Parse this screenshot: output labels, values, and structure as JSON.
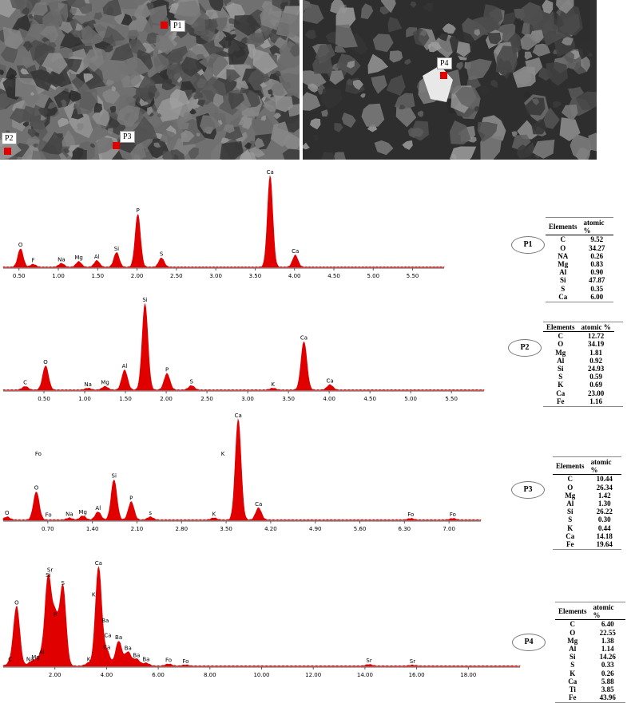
{
  "sem": {
    "left_points": [
      {
        "label": "P1"
      },
      {
        "label": "P2"
      },
      {
        "label": "P3"
      }
    ],
    "right_points": [
      {
        "label": "P4"
      }
    ]
  },
  "table_headers": {
    "element": "Elements",
    "value": "atomic %"
  },
  "chart_data": [
    {
      "type": "line",
      "point": "P1",
      "xticks": [
        "0.50",
        "1.00",
        "1.50",
        "2.00",
        "2.50",
        "3.00",
        "3.50",
        "4.00",
        "4.50",
        "5.00",
        "5.50"
      ],
      "xlim": [
        0.3,
        5.9
      ],
      "peaks": [
        {
          "label": "O",
          "x": 0.52,
          "h": 0.2
        },
        {
          "label": "F",
          "x": 0.68,
          "h": 0.03
        },
        {
          "label": "Na",
          "x": 1.04,
          "h": 0.04
        },
        {
          "label": "Mg",
          "x": 1.26,
          "h": 0.06
        },
        {
          "label": "Al",
          "x": 1.49,
          "h": 0.07
        },
        {
          "label": "Si",
          "x": 1.74,
          "h": 0.16
        },
        {
          "label": "P",
          "x": 2.01,
          "h": 0.58
        },
        {
          "label": "S",
          "x": 2.31,
          "h": 0.1
        },
        {
          "label": "Ca",
          "x": 3.69,
          "h": 1.0
        },
        {
          "label": "Ca",
          "x": 4.01,
          "h": 0.13
        }
      ],
      "table": [
        {
          "el": "C",
          "v": "9.52"
        },
        {
          "el": "O",
          "v": "34.27"
        },
        {
          "el": "NA",
          "v": "0.26"
        },
        {
          "el": "Mg",
          "v": "0.83"
        },
        {
          "el": "Al",
          "v": "0.90"
        },
        {
          "el": "Si",
          "v": "47.87"
        },
        {
          "el": "S",
          "v": "0.35"
        },
        {
          "el": "Ca",
          "v": "6.00"
        }
      ]
    },
    {
      "type": "line",
      "point": "P2",
      "xticks": [
        "0.50",
        "1.00",
        "1.50",
        "2.00",
        "2.50",
        "3.00",
        "3.50",
        "4.00",
        "4.50",
        "5.00",
        "5.50"
      ],
      "xlim": [
        0.0,
        5.9
      ],
      "peaks": [
        {
          "label": "C",
          "x": 0.27,
          "h": 0.04
        },
        {
          "label": "O",
          "x": 0.52,
          "h": 0.28
        },
        {
          "label": "Na",
          "x": 1.04,
          "h": 0.02
        },
        {
          "label": "Mg",
          "x": 1.25,
          "h": 0.04
        },
        {
          "label": "Al",
          "x": 1.49,
          "h": 0.23
        },
        {
          "label": "Si",
          "x": 1.74,
          "h": 1.0
        },
        {
          "label": "P",
          "x": 2.01,
          "h": 0.19
        },
        {
          "label": "S",
          "x": 2.31,
          "h": 0.05
        },
        {
          "label": "K",
          "x": 3.31,
          "h": 0.02
        },
        {
          "label": "Ca",
          "x": 3.69,
          "h": 0.56
        },
        {
          "label": "Ca",
          "x": 4.01,
          "h": 0.06
        }
      ],
      "table": [
        {
          "el": "C",
          "v": "12.72"
        },
        {
          "el": "O",
          "v": "34.19"
        },
        {
          "el": "Mg",
          "v": "1.81"
        },
        {
          "el": "Al",
          "v": "0.92"
        },
        {
          "el": "Si",
          "v": "24.93"
        },
        {
          "el": "S",
          "v": "0.59"
        },
        {
          "el": "K",
          "v": "0.69"
        },
        {
          "el": "Ca",
          "v": "23.00"
        },
        {
          "el": "Fe",
          "v": "1.16"
        }
      ]
    },
    {
      "type": "line",
      "point": "P3",
      "xticks": [
        "0.70",
        "1.40",
        "2.10",
        "2.80",
        "3.50",
        "4.20",
        "4.90",
        "5.60",
        "6.30",
        "7.00"
      ],
      "xlim": [
        0.0,
        7.5
      ],
      "peaks": [
        {
          "label": "O",
          "x": 0.06,
          "h": 0.03
        },
        {
          "label": "O",
          "x": 0.52,
          "h": 0.28
        },
        {
          "label": "Na",
          "x": 1.04,
          "h": 0.02
        },
        {
          "label": "Mg",
          "x": 1.25,
          "h": 0.04
        },
        {
          "label": "Al",
          "x": 1.49,
          "h": 0.08
        },
        {
          "label": "Si",
          "x": 1.74,
          "h": 0.4
        },
        {
          "label": "P",
          "x": 2.01,
          "h": 0.18
        },
        {
          "label": "s",
          "x": 2.31,
          "h": 0.03
        },
        {
          "label": "K",
          "x": 3.31,
          "h": 0.02
        },
        {
          "label": "Ca",
          "x": 3.69,
          "h": 1.0
        },
        {
          "label": "Ca",
          "x": 4.01,
          "h": 0.12
        },
        {
          "label": "Fo",
          "x": 6.4,
          "h": 0.015
        },
        {
          "label": "Fo",
          "x": 7.06,
          "h": 0.015
        }
      ],
      "annotations": [
        {
          "label": "Fo",
          "x": 0.55,
          "h": 0.62
        },
        {
          "label": "Fo",
          "x": 0.71,
          "h": 0.01
        },
        {
          "label": "K",
          "x": 3.45,
          "h": 0.62
        }
      ],
      "table": [
        {
          "el": "C",
          "v": "10.44"
        },
        {
          "el": "O",
          "v": "26.34"
        },
        {
          "el": "Mg",
          "v": "1.42"
        },
        {
          "el": "Al",
          "v": "1.30"
        },
        {
          "el": "Si",
          "v": "26.22"
        },
        {
          "el": "S",
          "v": "0.30"
        },
        {
          "el": "K",
          "v": "0.44"
        },
        {
          "el": "Ca",
          "v": "14.18"
        },
        {
          "el": "Fe",
          "v": "19.64"
        }
      ]
    },
    {
      "type": "line",
      "point": "P4",
      "xticks": [
        "2.00",
        "4.00",
        "6.00",
        "8.00",
        "10.00",
        "12.00",
        "14.00",
        "16.00",
        "18.00"
      ],
      "xlim": [
        0.0,
        20.0
      ],
      "peaks": [
        {
          "label": "C",
          "x": 0.27,
          "h": 0.03
        },
        {
          "label": "O",
          "x": 0.52,
          "h": 0.6
        },
        {
          "label": "Na",
          "x": 1.04,
          "h": 0.03
        },
        {
          "label": "Mg",
          "x": 1.25,
          "h": 0.05
        },
        {
          "label": "Al",
          "x": 1.49,
          "h": 0.1
        },
        {
          "label": "Si",
          "x": 1.74,
          "h": 0.88
        },
        {
          "label": "P",
          "x": 2.01,
          "h": 0.48
        },
        {
          "label": "S",
          "x": 2.31,
          "h": 0.8
        },
        {
          "label": "K",
          "x": 3.31,
          "h": 0.03
        },
        {
          "label": "Ca",
          "x": 3.69,
          "h": 1.0
        },
        {
          "label": "Ca",
          "x": 4.01,
          "h": 0.15
        },
        {
          "label": "Ba",
          "x": 4.47,
          "h": 0.25
        },
        {
          "label": "Ba",
          "x": 4.83,
          "h": 0.14
        },
        {
          "label": "Ba",
          "x": 5.16,
          "h": 0.07
        },
        {
          "label": "Ba",
          "x": 5.53,
          "h": 0.03
        },
        {
          "label": "Fo",
          "x": 6.4,
          "h": 0.02
        },
        {
          "label": "Fo",
          "x": 7.06,
          "h": 0.01
        },
        {
          "label": "Sr",
          "x": 14.16,
          "h": 0.015
        },
        {
          "label": "Sr",
          "x": 15.84,
          "h": 0.008
        }
      ],
      "annotations": [
        {
          "label": "Sr",
          "x": 1.81,
          "h": 0.93
        },
        {
          "label": "K",
          "x": 3.5,
          "h": 0.68
        },
        {
          "label": "Ba",
          "x": 3.95,
          "h": 0.42
        },
        {
          "label": "Ca",
          "x": 4.05,
          "h": 0.27
        }
      ],
      "table": [
        {
          "el": "C",
          "v": "6.40"
        },
        {
          "el": "O",
          "v": "22.55"
        },
        {
          "el": "Mg",
          "v": "1.38"
        },
        {
          "el": "Al",
          "v": "1.14"
        },
        {
          "el": "Si",
          "v": "14.26"
        },
        {
          "el": "S",
          "v": "0.33"
        },
        {
          "el": "K",
          "v": "0.26"
        },
        {
          "el": "Ca",
          "v": "5.88"
        },
        {
          "el": "Ti",
          "v": "3.85"
        },
        {
          "el": "Fe",
          "v": "43.96"
        }
      ]
    }
  ],
  "colors": {
    "spectrum": "#e00000",
    "axis": "#555555",
    "marker": "#e00000"
  }
}
